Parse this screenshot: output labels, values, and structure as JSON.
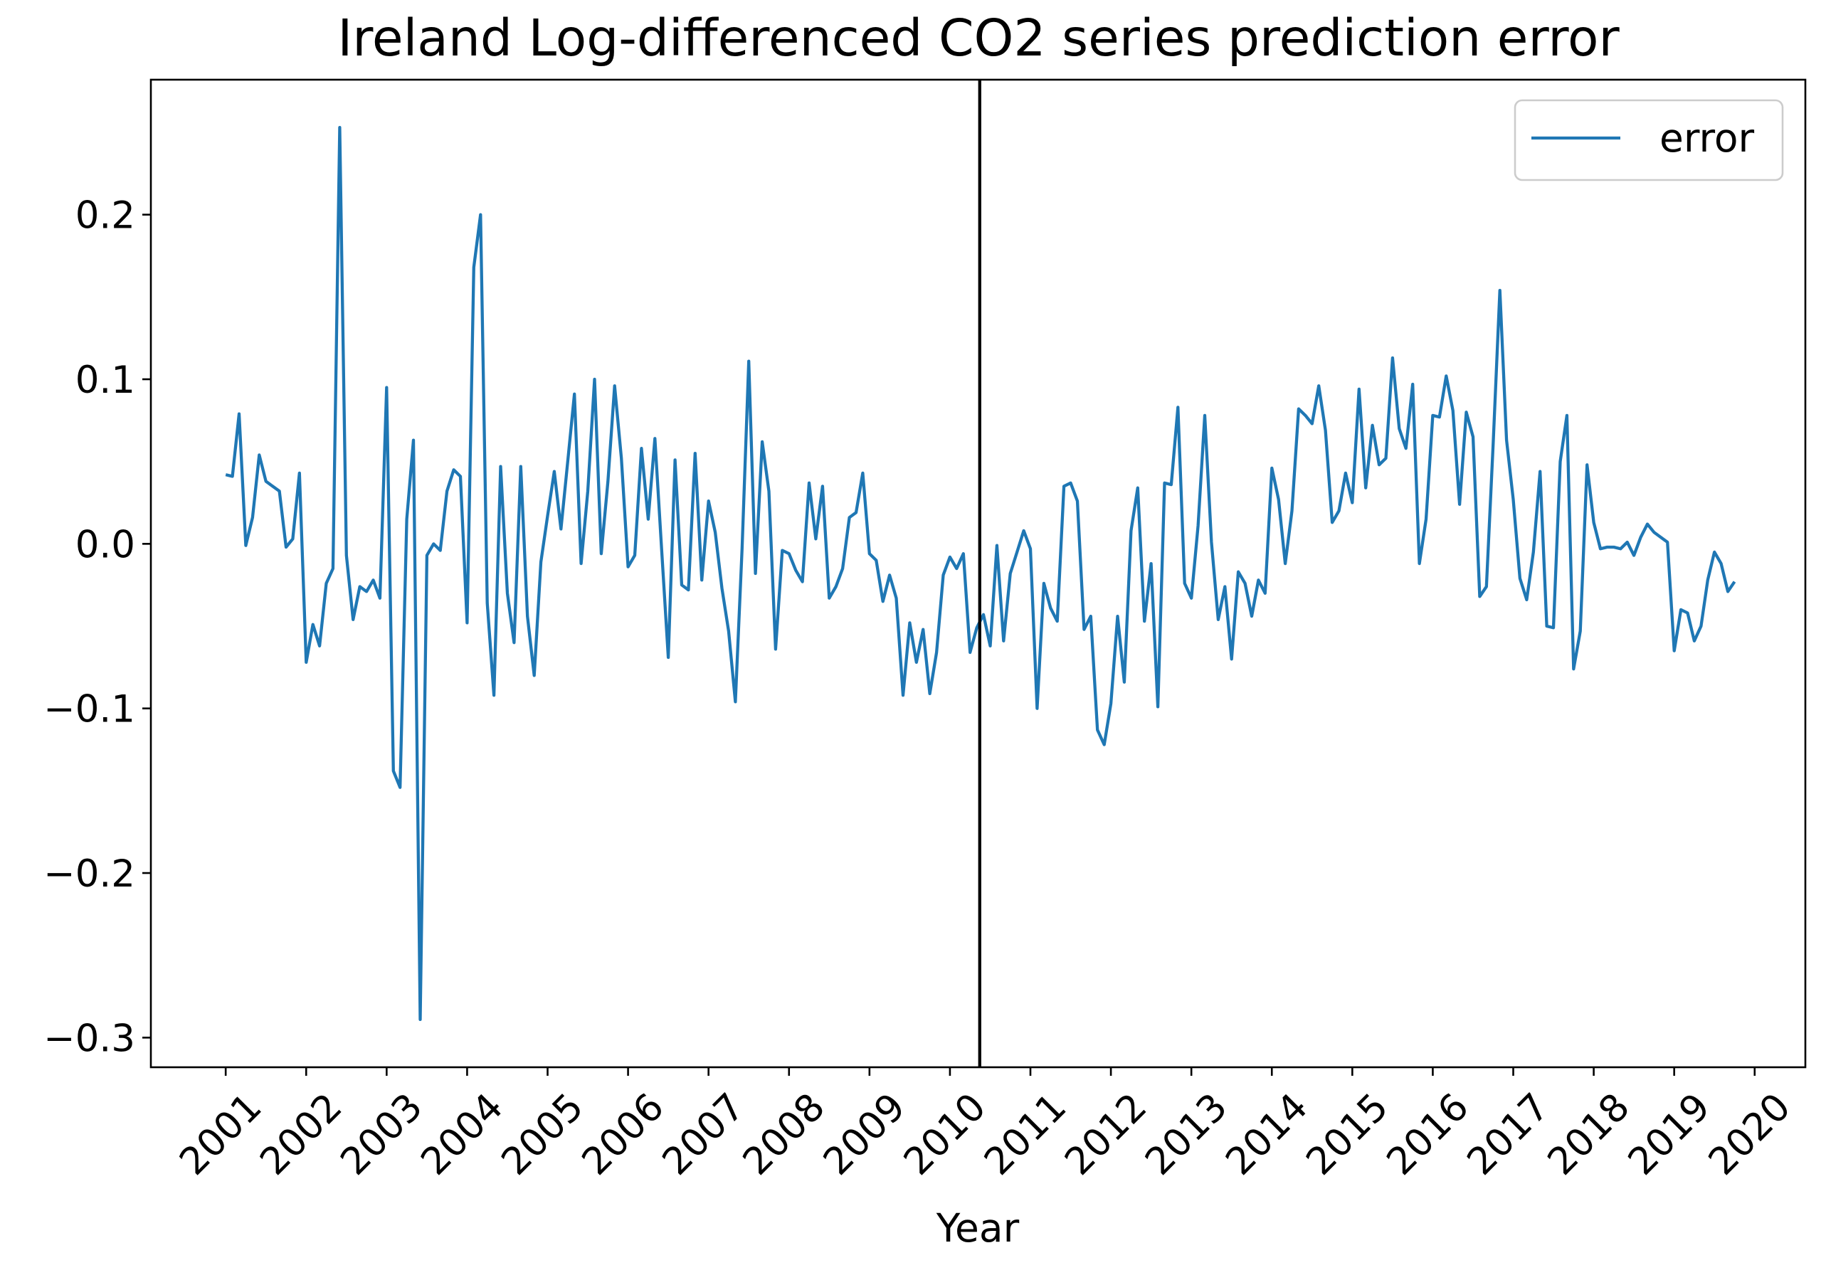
{
  "chart_data": {
    "type": "line",
    "title": "Ireland Log-differenced CO2 series prediction error",
    "xlabel": "Year",
    "ylabel": "",
    "x_tick_labels": [
      "2001",
      "2002",
      "2003",
      "2004",
      "2005",
      "2006",
      "2007",
      "2008",
      "2009",
      "2010",
      "2011",
      "2012",
      "2013",
      "2014",
      "2015",
      "2016",
      "2017",
      "2018",
      "2019",
      "2020"
    ],
    "y_ticks": [
      -0.3,
      -0.2,
      -0.1,
      0.0,
      0.1,
      0.2
    ],
    "y_tick_labels": [
      "−0.3",
      "−0.2",
      "−0.1",
      "0.0",
      "0.1",
      "0.2"
    ],
    "xlim": [
      2000.07,
      2020.63
    ],
    "ylim": [
      -0.318,
      0.282
    ],
    "grid": false,
    "legend": {
      "position": "top-right",
      "entries": [
        "error"
      ]
    },
    "vline": {
      "x": 2010.37,
      "color": "#000000"
    },
    "series": [
      {
        "name": "error",
        "color": "#1f77b4",
        "x_start": 2001.0,
        "x_step": 0.08333333,
        "values": [
          0.042,
          0.041,
          0.079,
          -0.001,
          0.016,
          0.054,
          0.038,
          0.035,
          0.032,
          -0.002,
          0.003,
          0.043,
          -0.072,
          -0.049,
          -0.062,
          -0.024,
          -0.015,
          0.253,
          -0.007,
          -0.046,
          -0.026,
          -0.029,
          -0.022,
          -0.033,
          0.095,
          -0.138,
          -0.148,
          0.015,
          0.063,
          -0.289,
          -0.007,
          0.0,
          -0.004,
          0.032,
          0.045,
          0.041,
          -0.048,
          0.168,
          0.2,
          -0.036,
          -0.092,
          0.047,
          -0.03,
          -0.06,
          0.047,
          -0.044,
          -0.08,
          -0.011,
          0.017,
          0.044,
          0.009,
          0.05,
          0.091,
          -0.012,
          0.032,
          0.1,
          -0.006,
          0.038,
          0.096,
          0.052,
          -0.014,
          -0.007,
          0.058,
          0.015,
          0.064,
          -0.003,
          -0.069,
          0.051,
          -0.025,
          -0.028,
          0.055,
          -0.022,
          0.026,
          0.007,
          -0.027,
          -0.053,
          -0.096,
          -0.003,
          0.111,
          -0.018,
          0.062,
          0.032,
          -0.064,
          -0.004,
          -0.006,
          -0.016,
          -0.023,
          0.037,
          0.003,
          0.035,
          -0.033,
          -0.026,
          -0.015,
          0.016,
          0.019,
          0.043,
          -0.006,
          -0.01,
          -0.035,
          -0.019,
          -0.033,
          -0.092,
          -0.048,
          -0.072,
          -0.052,
          -0.091,
          -0.066,
          -0.019,
          -0.008,
          -0.015,
          -0.006,
          -0.066,
          -0.051,
          -0.043,
          -0.062,
          -0.001,
          -0.059,
          -0.018,
          -0.005,
          0.008,
          -0.003,
          -0.1,
          -0.024,
          -0.039,
          -0.047,
          0.035,
          0.037,
          0.026,
          -0.052,
          -0.044,
          -0.113,
          -0.122,
          -0.097,
          -0.044,
          -0.084,
          0.008,
          0.034,
          -0.047,
          -0.012,
          -0.099,
          0.037,
          0.036,
          0.083,
          -0.024,
          -0.033,
          0.011,
          0.078,
          0.001,
          -0.046,
          -0.026,
          -0.07,
          -0.017,
          -0.024,
          -0.044,
          -0.022,
          -0.03,
          0.046,
          0.027,
          -0.012,
          0.02,
          0.082,
          0.078,
          0.073,
          0.096,
          0.069,
          0.013,
          0.02,
          0.043,
          0.025,
          0.094,
          0.034,
          0.072,
          0.048,
          0.052,
          0.113,
          0.07,
          0.058,
          0.097,
          -0.012,
          0.015,
          0.078,
          0.077,
          0.102,
          0.081,
          0.024,
          0.08,
          0.065,
          -0.032,
          -0.026,
          0.06,
          0.154,
          0.063,
          0.027,
          -0.021,
          -0.034,
          -0.005,
          0.044,
          -0.05,
          -0.051,
          0.05,
          0.078,
          -0.076,
          -0.053,
          0.048,
          0.013,
          -0.003,
          -0.002,
          -0.002,
          -0.003,
          0.001,
          -0.007,
          0.004,
          0.012,
          0.007,
          0.004,
          0.001,
          -0.065,
          -0.04,
          -0.042,
          -0.059,
          -0.05,
          -0.022,
          -0.005,
          -0.012,
          -0.029,
          -0.023
        ]
      }
    ]
  }
}
